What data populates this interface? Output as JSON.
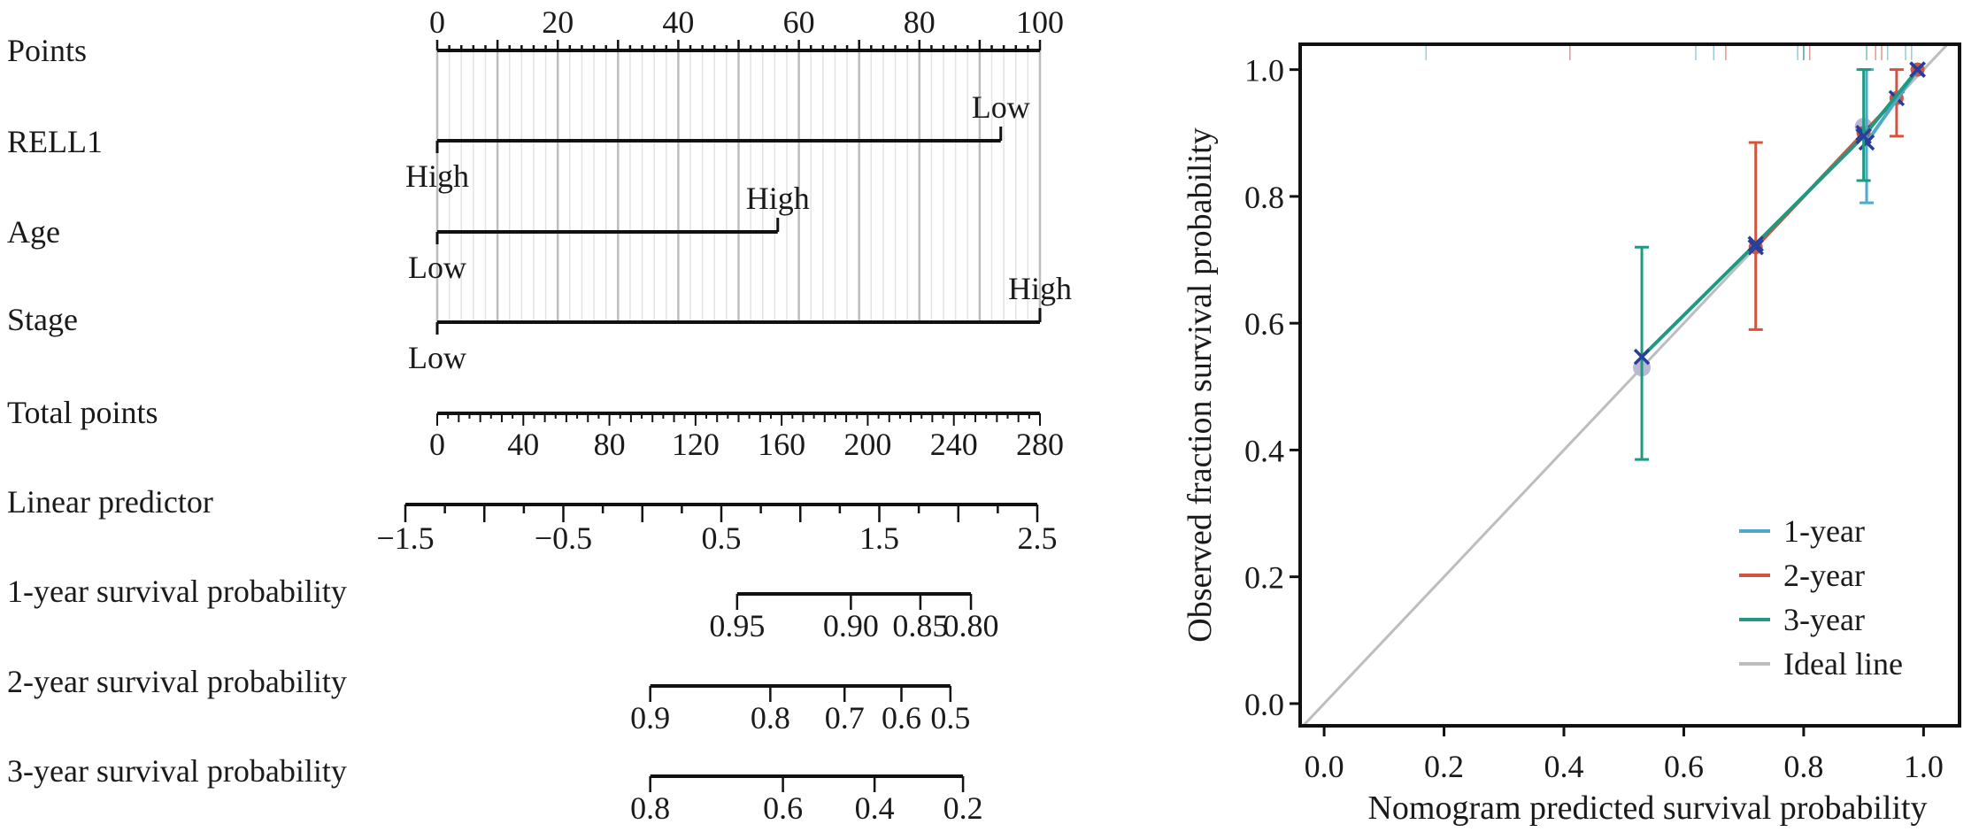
{
  "chart_data": [
    {
      "type": "nomogram",
      "rows": [
        {
          "name": "Points",
          "kind": "points_axis",
          "range": [
            0,
            100
          ],
          "tick_labels": [
            "0",
            "20",
            "40",
            "60",
            "80",
            "100"
          ],
          "tick_values": [
            0,
            20,
            40,
            60,
            80,
            100
          ]
        },
        {
          "name": "RELL1",
          "kind": "factor",
          "levels": [
            {
              "label": "High",
              "points": 0
            },
            {
              "label": "Low",
              "points": 93.5
            }
          ]
        },
        {
          "name": "Age",
          "kind": "factor",
          "levels": [
            {
              "label": "Low",
              "points": 0
            },
            {
              "label": "High",
              "points": 56.5
            }
          ]
        },
        {
          "name": "Stage",
          "kind": "factor",
          "levels": [
            {
              "label": "Low",
              "points": 0
            },
            {
              "label": "High",
              "points": 100
            }
          ]
        },
        {
          "name": "Total points",
          "kind": "total_axis",
          "range": [
            0,
            280
          ],
          "tick_labels": [
            "0",
            "40",
            "80",
            "120",
            "160",
            "200",
            "240",
            "280"
          ],
          "tick_values": [
            0,
            40,
            80,
            120,
            160,
            200,
            240,
            280
          ]
        },
        {
          "name": "Linear predictor",
          "kind": "lp_axis",
          "range": [
            -1.5,
            2.5
          ],
          "tick_labels": [
            "−1.5",
            "−0.5",
            "0.5",
            "1.5",
            "2.5"
          ],
          "tick_values": [
            -1.5,
            -0.5,
            0.5,
            1.5,
            2.5
          ]
        },
        {
          "name": "1-year survival probability",
          "kind": "prob_axis",
          "ticks": [
            {
              "label": "0.95",
              "lp": 0.6
            },
            {
              "label": "0.90",
              "lp": 1.32
            },
            {
              "label": "0.85",
              "lp": 1.76
            },
            {
              "label": "0.80",
              "lp": 2.08
            }
          ]
        },
        {
          "name": "2-year survival probability",
          "kind": "prob_axis",
          "ticks": [
            {
              "label": "0.9",
              "lp": 0.05
            },
            {
              "label": "0.8",
              "lp": 0.81
            },
            {
              "label": "0.7",
              "lp": 1.28
            },
            {
              "label": "0.6",
              "lp": 1.64
            },
            {
              "label": "0.5",
              "lp": 1.95
            }
          ]
        },
        {
          "name": "3-year survival probability",
          "kind": "prob_axis",
          "ticks": [
            {
              "label": "0.8",
              "lp": 0.05
            },
            {
              "label": "0.6",
              "lp": 0.89
            },
            {
              "label": "0.4",
              "lp": 1.47
            },
            {
              "label": "0.2",
              "lp": 2.03
            }
          ]
        }
      ]
    },
    {
      "type": "line",
      "title": "",
      "xlabel": "Nomogram predicted survival probability",
      "ylabel": "Observed fraction survival probability",
      "xlim": [
        -0.04,
        1.06
      ],
      "ylim": [
        -0.035,
        1.04
      ],
      "xticks": [
        0,
        0.2,
        0.4,
        0.6,
        0.8,
        1.0
      ],
      "xtick_labels": [
        "0.0",
        "0.2",
        "0.4",
        "0.6",
        "0.8",
        "1.0"
      ],
      "yticks": [
        0,
        0.2,
        0.4,
        0.6,
        0.8,
        1.0
      ],
      "ytick_labels": [
        "0.0",
        "0.2",
        "0.4",
        "0.6",
        "0.8",
        "1.0"
      ],
      "grid": false,
      "legend_position": "bottom-right",
      "legend": [
        "1-year",
        "2-year",
        "3-year",
        "Ideal line"
      ],
      "ideal_line": {
        "color": "#bdbdbd",
        "from": [
          -0.04,
          -0.04
        ],
        "to": [
          1.06,
          1.06
        ]
      },
      "series": [
        {
          "name": "1-year",
          "color": "#4fa9c9",
          "points": [
            {
              "x": 0.905,
              "y": 0.885,
              "lo": 0.79,
              "hi": 1.0
            },
            {
              "x": 0.99,
              "y": 1.0
            }
          ],
          "rug": [
            0.17,
            0.62,
            0.65,
            0.79,
            0.8,
            0.94,
            0.97,
            0.98
          ]
        },
        {
          "name": "2-year",
          "color": "#d4533f",
          "points": [
            {
              "x": 0.72,
              "y": 0.72,
              "lo": 0.59,
              "hi": 0.885
            },
            {
              "x": 0.9,
              "y": 0.9
            },
            {
              "x": 0.955,
              "y": 0.955,
              "lo": 0.895,
              "hi": 1.0
            },
            {
              "x": 0.99,
              "y": 1.0
            }
          ],
          "rug": [
            0.41,
            0.67,
            0.81,
            0.92,
            0.93
          ]
        },
        {
          "name": "3-year",
          "color": "#1f9a80",
          "points": [
            {
              "x": 0.53,
              "y": 0.547,
              "lo": 0.385,
              "hi": 0.72
            },
            {
              "x": 0.72,
              "y": 0.725
            },
            {
              "x": 0.9,
              "y": 0.895,
              "lo": 0.825,
              "hi": 1.0
            },
            {
              "x": 0.99,
              "y": 1.0
            }
          ],
          "rug": [
            0.8,
            0.905
          ]
        }
      ],
      "grey_points": [
        {
          "x": 0.53,
          "y": 0.53
        },
        {
          "x": 0.9,
          "y": 0.91
        }
      ]
    }
  ]
}
